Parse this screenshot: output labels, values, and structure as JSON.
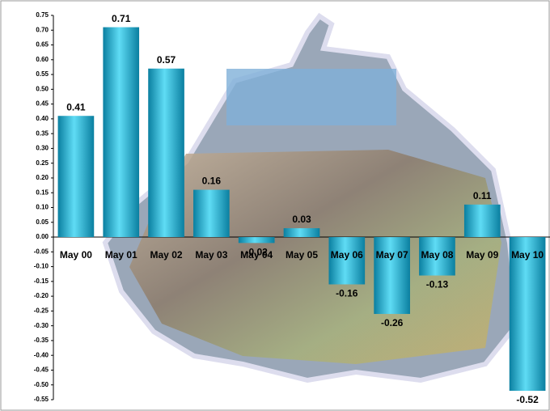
{
  "chart_data": {
    "type": "bar",
    "categories": [
      "May 00",
      "May 01",
      "May 02",
      "May 03",
      "May 04",
      "May 05",
      "May 06",
      "May 07",
      "May 08",
      "May 09",
      "May 10"
    ],
    "values": [
      0.41,
      0.71,
      0.57,
      0.16,
      -0.02,
      0.03,
      -0.16,
      -0.26,
      -0.13,
      0.11,
      -0.52
    ],
    "color": "#1ab3d6",
    "ylim": [
      -0.55,
      0.75
    ],
    "yticks": [
      0.75,
      {
        "value": 0.7,
        "label": "0.70"
      },
      0.65,
      {
        "value": 0.6,
        "label": "0.60"
      },
      0.55,
      {
        "value": 0.5,
        "label": "0.50"
      },
      0.45,
      {
        "value": 0.4,
        "label": "0.40"
      },
      0.35,
      {
        "value": 0.3,
        "label": "0.30"
      },
      0.25,
      {
        "value": 0.2,
        "label": "0.20"
      },
      0.15,
      {
        "value": 0.1,
        "label": "0.10"
      },
      0.05,
      {
        "value": 0,
        "label": "0.00"
      },
      -0.05,
      {
        "value": -0.1,
        "label": "-0.10"
      },
      -0.15,
      {
        "value": -0.2,
        "label": "-0.20"
      },
      -0.25,
      {
        "value": -0.3,
        "label": "-0.30"
      },
      -0.35,
      {
        "value": -0.4,
        "label": "-0.40"
      },
      -0.45,
      {
        "value": -0.5,
        "label": "-0.50"
      },
      -0.55
    ]
  }
}
